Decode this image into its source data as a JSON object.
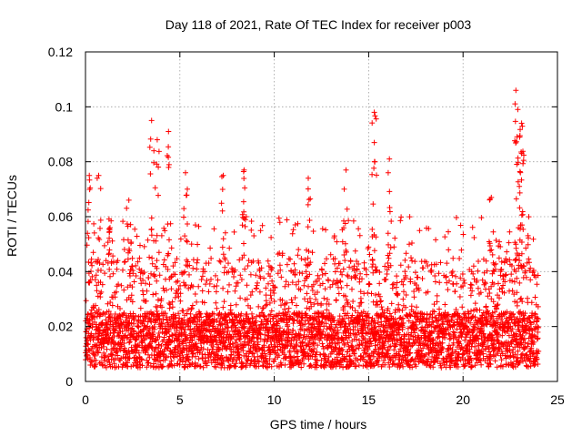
{
  "chart_data": {
    "type": "scatter",
    "title": "Day 118 of 2021, Rate Of TEC Index for receiver p003",
    "xlabel": "GPS time / hours",
    "ylabel": "ROTI / TECUs",
    "xlim": [
      0,
      25
    ],
    "ylim": [
      0,
      0.12
    ],
    "xticks": [
      0,
      5,
      10,
      15,
      20,
      25
    ],
    "yticks": [
      0,
      0.02,
      0.04,
      0.06,
      0.08,
      0.1,
      0.12
    ],
    "xtick_labels": [
      "0",
      "5",
      "10",
      "15",
      "20",
      "25"
    ],
    "ytick_labels": [
      "0",
      "0.02",
      "0.04",
      "0.06",
      "0.08",
      "0.1",
      "0.12"
    ],
    "grid": true,
    "marker": "+",
    "color": "#ff0000",
    "series": [
      {
        "name": "ROTI",
        "data_x_range": [
          0,
          24
        ],
        "baseline_range": [
          0.005,
          0.025
        ],
        "typical_max": 0.045,
        "peaks": [
          {
            "x": 0.2,
            "y": 0.075
          },
          {
            "x": 0.7,
            "y": 0.075
          },
          {
            "x": 1.3,
            "y": 0.056
          },
          {
            "x": 2.3,
            "y": 0.066
          },
          {
            "x": 3.5,
            "y": 0.095
          },
          {
            "x": 3.8,
            "y": 0.088
          },
          {
            "x": 4.4,
            "y": 0.091
          },
          {
            "x": 5.3,
            "y": 0.076
          },
          {
            "x": 7.3,
            "y": 0.075
          },
          {
            "x": 8.4,
            "y": 0.077
          },
          {
            "x": 11.8,
            "y": 0.074
          },
          {
            "x": 13.8,
            "y": 0.077
          },
          {
            "x": 15.3,
            "y": 0.098
          },
          {
            "x": 15.3,
            "y": 0.087
          },
          {
            "x": 16.1,
            "y": 0.081
          },
          {
            "x": 21.5,
            "y": 0.067
          },
          {
            "x": 22.8,
            "y": 0.106
          },
          {
            "x": 22.9,
            "y": 0.099
          },
          {
            "x": 23.1,
            "y": 0.094
          },
          {
            "x": 23.0,
            "y": 0.089
          },
          {
            "x": 23.1,
            "y": 0.083
          }
        ]
      }
    ]
  }
}
